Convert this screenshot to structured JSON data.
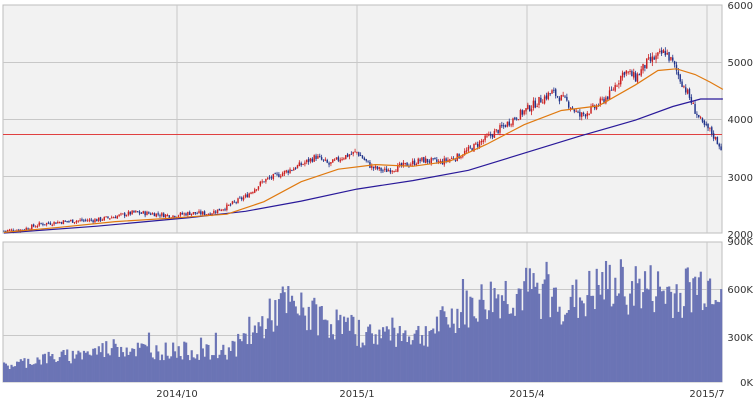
{
  "colors": {
    "background": "#f2f2f2",
    "grid": "#c8c8c8",
    "frame": "#bdbdbd",
    "candle_up": "#cc2020",
    "candle_down": "#20338a",
    "ma_short": "#e07a10",
    "ma_long": "#2a1a9a",
    "reference_line": "#e04040",
    "volume_fill": "#6b74b5"
  },
  "chart_data": [
    {
      "type": "candlestick",
      "panel": "price",
      "x_tick_labels": [
        "2014/10",
        "2015/1",
        "2015/4",
        "2015/7"
      ],
      "y_tick_labels": [
        "2000",
        "3000",
        "4000",
        "5000",
        "6000"
      ],
      "ylim": [
        2000,
        6000
      ],
      "grid": true,
      "reference_level": 3740,
      "close_path": [
        [
          0,
          2040
        ],
        [
          10,
          2060
        ],
        [
          20,
          2160
        ],
        [
          35,
          2210
        ],
        [
          50,
          2230
        ],
        [
          60,
          2290
        ],
        [
          70,
          2360
        ],
        [
          80,
          2340
        ],
        [
          90,
          2300
        ],
        [
          100,
          2350
        ],
        [
          110,
          2340
        ],
        [
          120,
          2460
        ],
        [
          130,
          2640
        ],
        [
          140,
          2920
        ],
        [
          150,
          3050
        ],
        [
          160,
          3200
        ],
        [
          168,
          3340
        ],
        [
          175,
          3200
        ],
        [
          182,
          3330
        ],
        [
          190,
          3420
        ],
        [
          198,
          3150
        ],
        [
          205,
          3090
        ],
        [
          215,
          3180
        ],
        [
          225,
          3280
        ],
        [
          235,
          3240
        ],
        [
          245,
          3350
        ],
        [
          255,
          3560
        ],
        [
          265,
          3780
        ],
        [
          275,
          4020
        ],
        [
          285,
          4250
        ],
        [
          295,
          4470
        ],
        [
          303,
          4300
        ],
        [
          310,
          4050
        ],
        [
          318,
          4200
        ],
        [
          326,
          4430
        ],
        [
          334,
          4850
        ],
        [
          340,
          4720
        ],
        [
          346,
          4980
        ],
        [
          352,
          5100
        ],
        [
          356,
          5180
        ],
        [
          360,
          4980
        ],
        [
          364,
          4700
        ],
        [
          368,
          4450
        ],
        [
          372,
          4150
        ],
        [
          376,
          3900
        ],
        [
          380,
          3800
        ],
        [
          383,
          3650
        ],
        [
          386,
          3500
        ]
      ],
      "moving_average_short": [
        [
          0,
          2010
        ],
        [
          30,
          2100
        ],
        [
          60,
          2200
        ],
        [
          90,
          2260
        ],
        [
          120,
          2330
        ],
        [
          140,
          2550
        ],
        [
          160,
          2900
        ],
        [
          180,
          3120
        ],
        [
          200,
          3200
        ],
        [
          220,
          3170
        ],
        [
          240,
          3260
        ],
        [
          260,
          3560
        ],
        [
          280,
          3900
        ],
        [
          300,
          4150
        ],
        [
          320,
          4230
        ],
        [
          340,
          4600
        ],
        [
          352,
          4850
        ],
        [
          362,
          4880
        ],
        [
          372,
          4780
        ],
        [
          380,
          4650
        ],
        [
          387,
          4520
        ]
      ],
      "moving_average_long": [
        [
          0,
          2000
        ],
        [
          50,
          2120
        ],
        [
          100,
          2270
        ],
        [
          130,
          2380
        ],
        [
          160,
          2560
        ],
        [
          190,
          2770
        ],
        [
          220,
          2920
        ],
        [
          250,
          3100
        ],
        [
          280,
          3400
        ],
        [
          310,
          3700
        ],
        [
          340,
          3980
        ],
        [
          360,
          4220
        ],
        [
          375,
          4350
        ],
        [
          387,
          4350
        ]
      ]
    },
    {
      "type": "bar",
      "panel": "volume",
      "y_tick_labels": [
        "0K",
        "300K",
        "600K",
        "900K"
      ],
      "ylim": [
        0,
        900
      ],
      "grid": true,
      "volume_path": [
        [
          0,
          100
        ],
        [
          20,
          150
        ],
        [
          40,
          170
        ],
        [
          60,
          230
        ],
        [
          80,
          200
        ],
        [
          100,
          200
        ],
        [
          115,
          180
        ],
        [
          125,
          230
        ],
        [
          135,
          320
        ],
        [
          150,
          500
        ],
        [
          165,
          430
        ],
        [
          180,
          370
        ],
        [
          195,
          300
        ],
        [
          210,
          320
        ],
        [
          225,
          300
        ],
        [
          245,
          440
        ],
        [
          265,
          550
        ],
        [
          285,
          580
        ],
        [
          305,
          500
        ],
        [
          325,
          620
        ],
        [
          345,
          600
        ],
        [
          360,
          560
        ],
        [
          375,
          620
        ],
        [
          387,
          650
        ]
      ]
    }
  ]
}
